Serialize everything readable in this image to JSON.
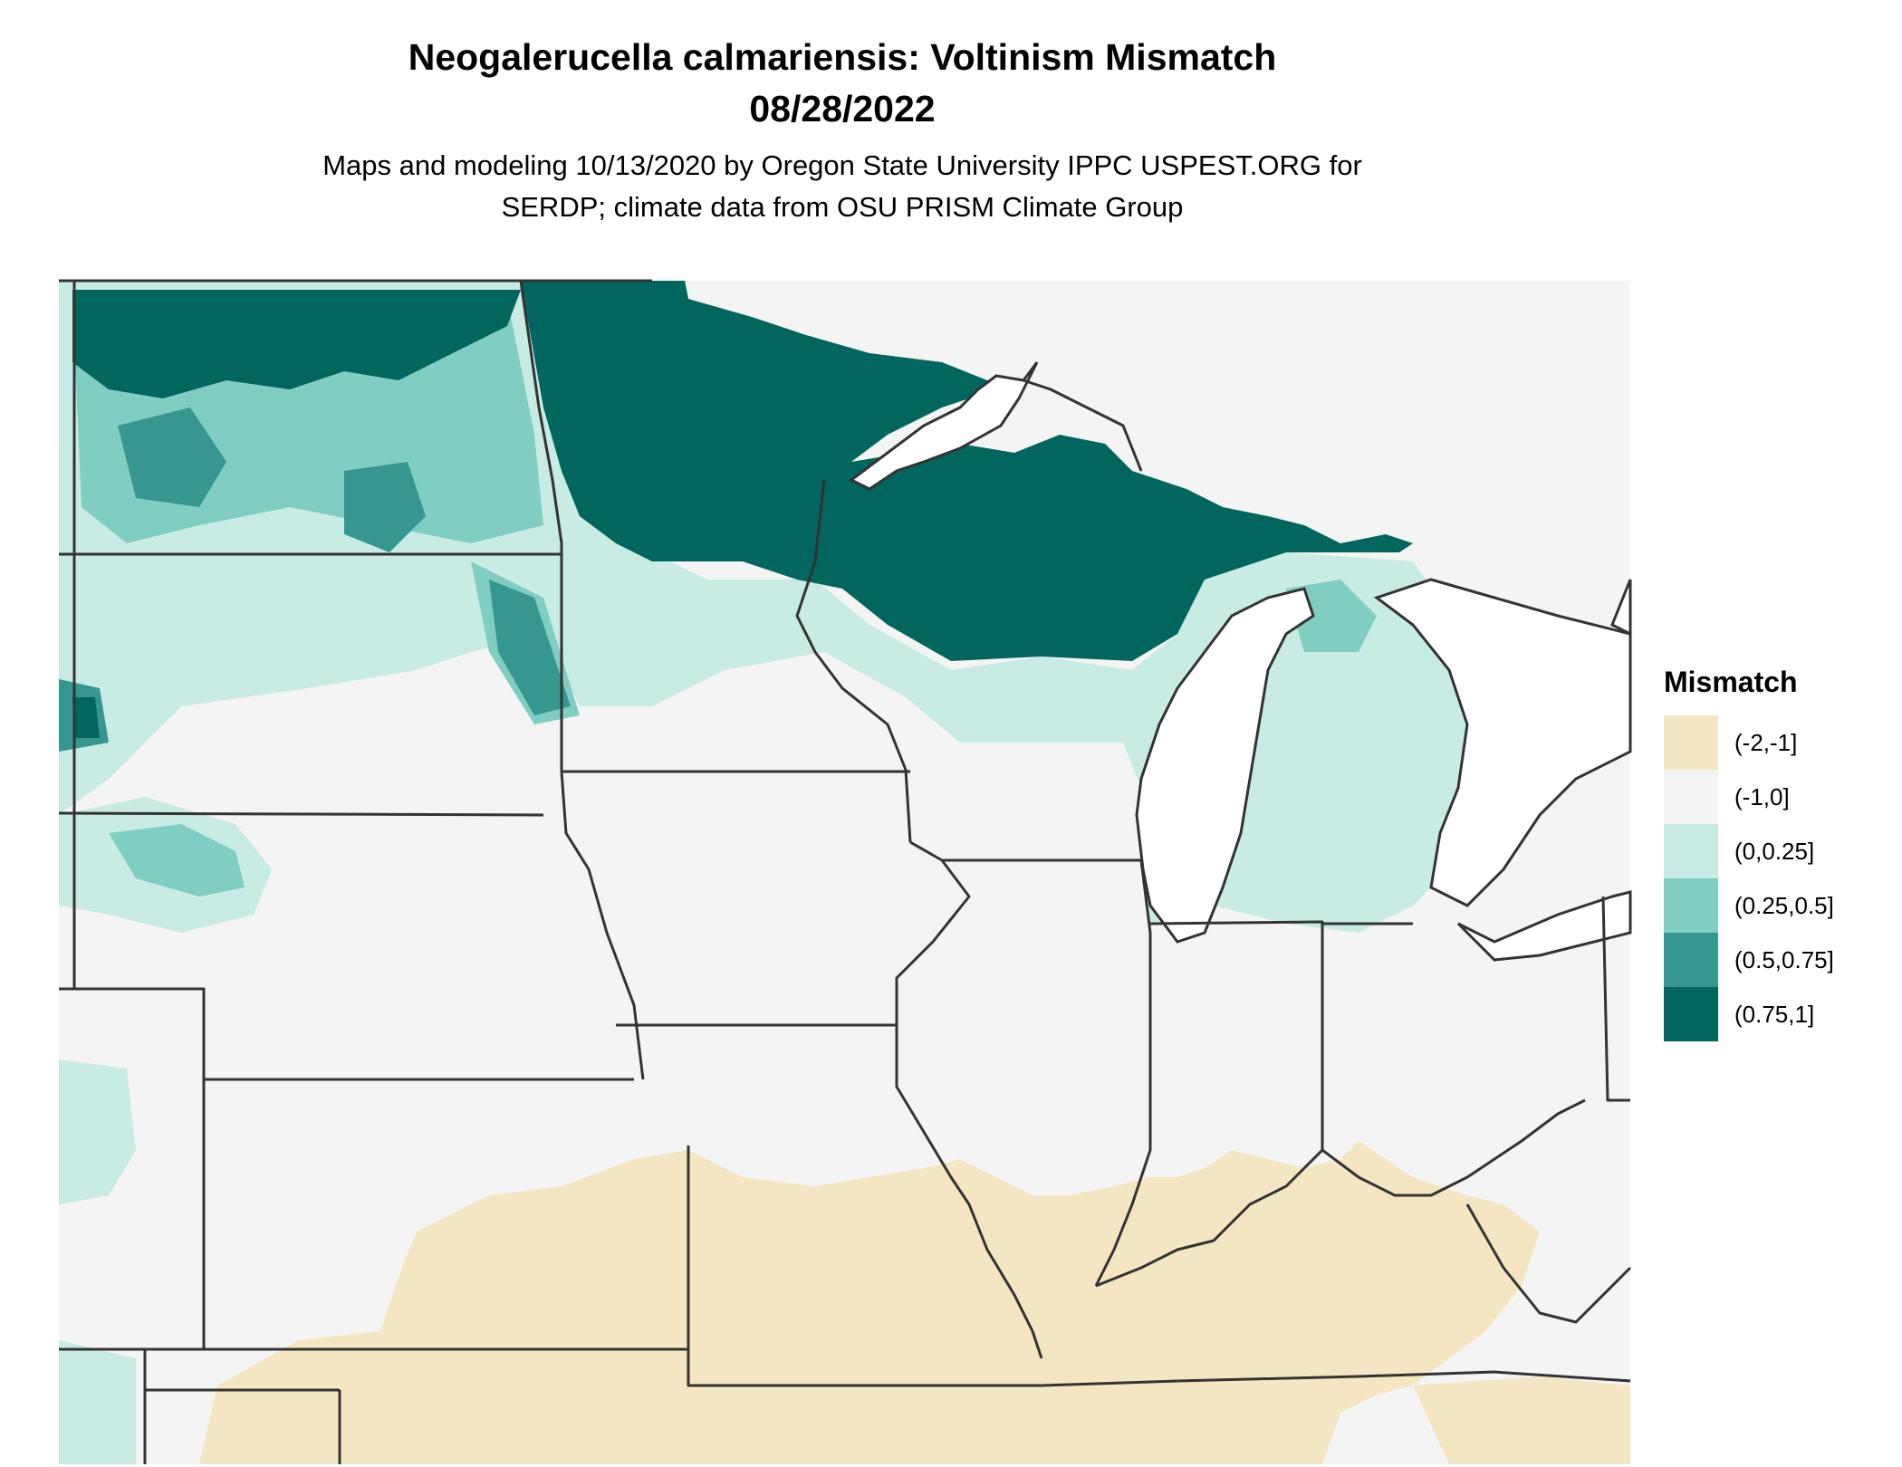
{
  "title": {
    "line1": "Neogalerucella calmariensis: Voltinism Mismatch",
    "line2": "08/28/2022"
  },
  "subtitle": {
    "line1": "Maps and modeling 10/13/2020 by Oregon State University IPPC USPEST.ORG for",
    "line2": "SERDP; climate data from OSU PRISM Climate Group"
  },
  "legend": {
    "title": "Mismatch",
    "items": [
      {
        "label": "(-2,-1]",
        "color": "#f5e6c3"
      },
      {
        "label": "(-1,0]",
        "color": "#f4f4f4"
      },
      {
        "label": "(0,0.25]",
        "color": "#c8ebe4"
      },
      {
        "label": "(0.25,0.5]",
        "color": "#80cdc1"
      },
      {
        "label": "(0.5,0.75]",
        "color": "#35978f"
      },
      {
        "label": "(0.75,1]",
        "color": "#01665e"
      }
    ]
  },
  "map": {
    "background_color": "#f4f4f4",
    "border_color": "#333333",
    "lake_color": "#ffffff"
  }
}
